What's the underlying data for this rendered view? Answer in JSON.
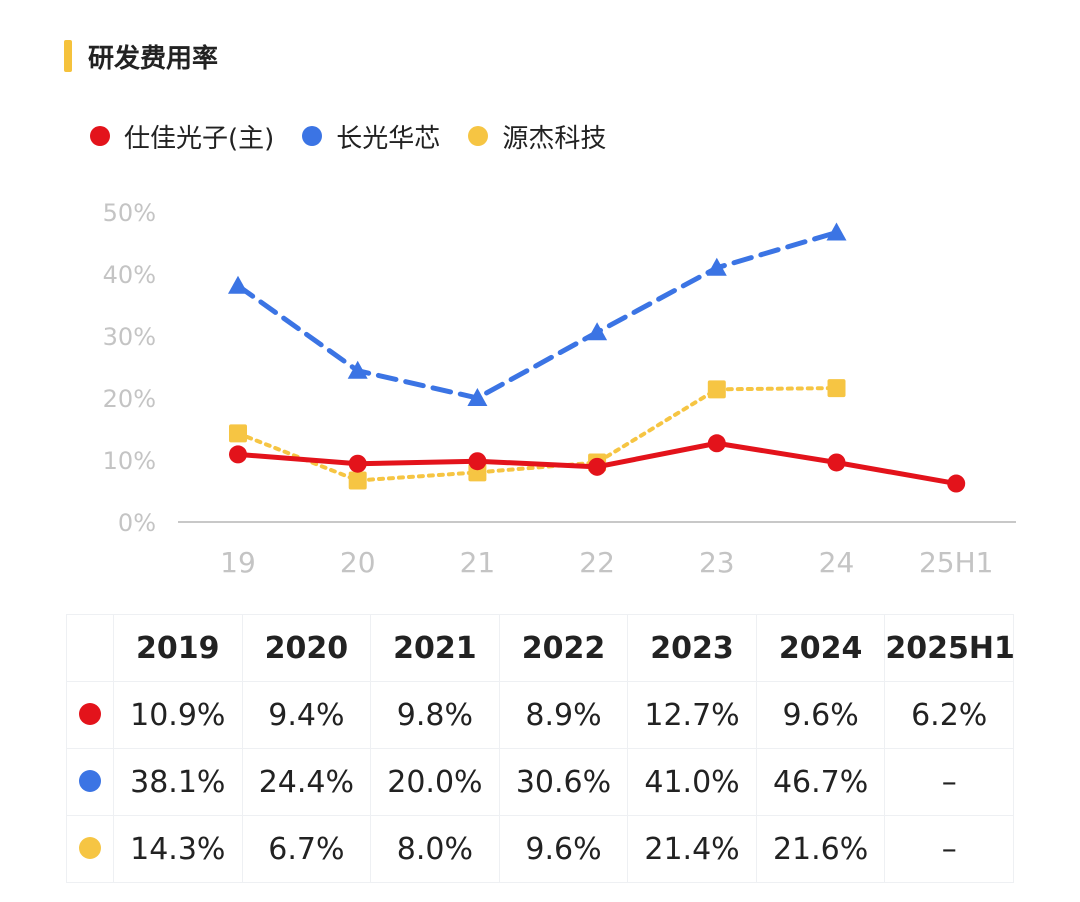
{
  "title": "研发费用率",
  "colors": {
    "accent": "#f5c23c",
    "s1": "#e3131b",
    "s2": "#3b74e4",
    "s3": "#f6c543",
    "axis": "#c8c8c8",
    "tick": "#c4c4c4"
  },
  "legend": [
    {
      "label": "仕佳光子(主)",
      "color": "#e3131b"
    },
    {
      "label": "长光华芯",
      "color": "#3b74e4"
    },
    {
      "label": "源杰科技",
      "color": "#f6c543"
    }
  ],
  "chart_data": {
    "type": "line",
    "categories": [
      "19",
      "20",
      "21",
      "22",
      "23",
      "24",
      "25H1"
    ],
    "ylim": [
      0,
      50
    ],
    "yticks": [
      "0%",
      "10%",
      "20%",
      "30%",
      "40%",
      "50%"
    ],
    "ytick_values": [
      0,
      10,
      20,
      30,
      40,
      50
    ],
    "grid": false,
    "legend_position": "top-left",
    "series": [
      {
        "name": "仕佳光子(主)",
        "values": [
          10.9,
          9.4,
          9.8,
          8.9,
          12.7,
          9.6,
          6.2
        ],
        "color": "#e3131b",
        "marker": "circle",
        "line": "solid"
      },
      {
        "name": "长光华芯",
        "values": [
          38.1,
          24.4,
          20.0,
          30.6,
          41.0,
          46.7,
          null
        ],
        "color": "#3b74e4",
        "marker": "triangle",
        "line": "dashed"
      },
      {
        "name": "源杰科技",
        "values": [
          14.3,
          6.7,
          8.0,
          9.6,
          21.4,
          21.6,
          null
        ],
        "color": "#f6c543",
        "marker": "square",
        "line": "dotted"
      }
    ]
  },
  "table": {
    "header": [
      "2019",
      "2020",
      "2021",
      "2022",
      "2023",
      "2024",
      "2025H1"
    ],
    "rows": [
      {
        "color": "#e3131b",
        "cells": [
          "10.9%",
          "9.4%",
          "9.8%",
          "8.9%",
          "12.7%",
          "9.6%",
          "6.2%"
        ]
      },
      {
        "color": "#3b74e4",
        "cells": [
          "38.1%",
          "24.4%",
          "20.0%",
          "30.6%",
          "41.0%",
          "46.7%",
          "–"
        ]
      },
      {
        "color": "#f6c543",
        "cells": [
          "14.3%",
          "6.7%",
          "8.0%",
          "9.6%",
          "21.4%",
          "21.6%",
          "–"
        ]
      }
    ]
  }
}
